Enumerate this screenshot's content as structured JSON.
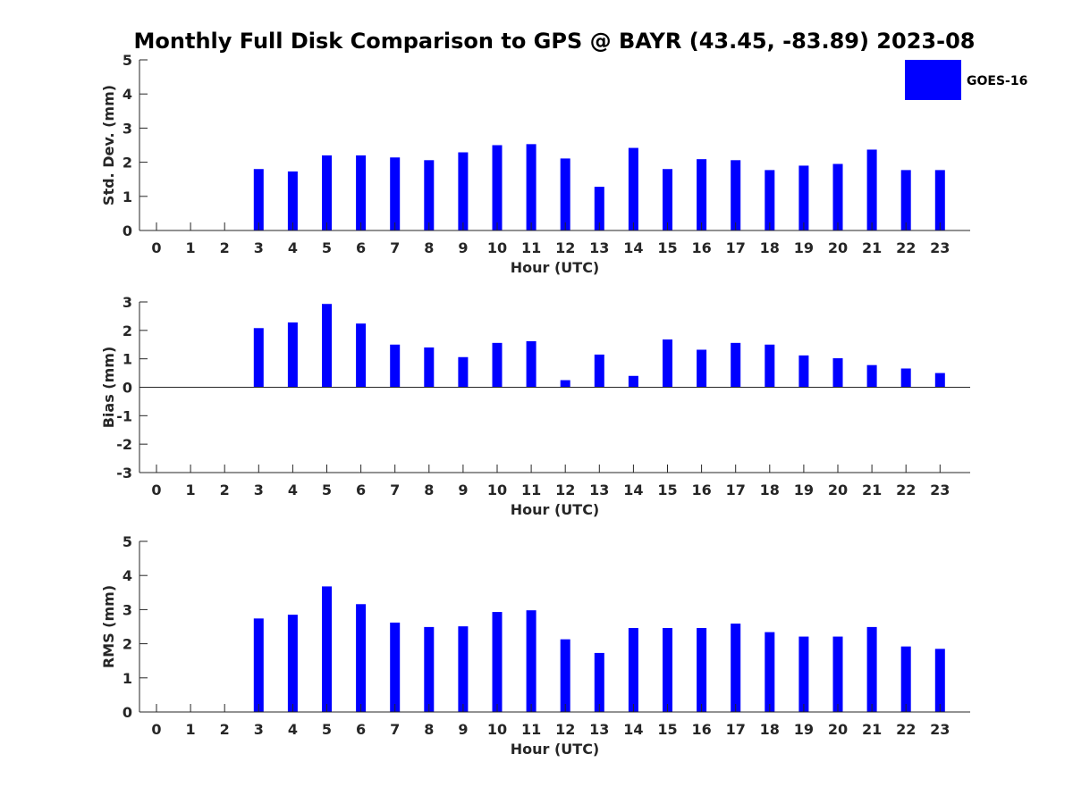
{
  "chart_data": {
    "title": "Monthly Full Disk Comparison to GPS @ BAYR (43.45, -83.89) 2023-08",
    "type": "bar",
    "legend": {
      "entries": [
        "GOES-16"
      ],
      "placement": "top-right",
      "color": "#0000ff"
    },
    "bar_color": "#0000ff",
    "panels": [
      {
        "type": "bar",
        "ylabel": "Std. Dev. (mm)",
        "xlabel": "Hour (UTC)",
        "ylim": [
          0,
          5
        ],
        "yticks": [
          "0",
          "1",
          "2",
          "3",
          "4",
          "5"
        ],
        "ytick_values": [
          0,
          1,
          2,
          3,
          4,
          5
        ],
        "categories": [
          "0",
          "1",
          "2",
          "3",
          "4",
          "5",
          "6",
          "7",
          "8",
          "9",
          "10",
          "11",
          "12",
          "13",
          "14",
          "15",
          "16",
          "17",
          "18",
          "19",
          "20",
          "21",
          "22",
          "23"
        ],
        "series": [
          {
            "name": "GOES-16",
            "values": [
              null,
              null,
              null,
              1.8,
              1.73,
              2.2,
              2.2,
              2.14,
              2.06,
              2.29,
              2.5,
              2.53,
              2.11,
              1.28,
              2.42,
              1.8,
              2.09,
              2.06,
              1.77,
              1.9,
              1.95,
              2.37,
              1.77,
              1.77
            ]
          }
        ]
      },
      {
        "type": "bar",
        "ylabel": "Bias (mm)",
        "xlabel": "Hour (UTC)",
        "ylim": [
          -3,
          3
        ],
        "yticks": [
          "-3",
          "-2",
          "-1",
          "0",
          "1",
          "2",
          "3"
        ],
        "ytick_values": [
          -3,
          -2,
          -1,
          0,
          1,
          2,
          3
        ],
        "categories": [
          "0",
          "1",
          "2",
          "3",
          "4",
          "5",
          "6",
          "7",
          "8",
          "9",
          "10",
          "11",
          "12",
          "13",
          "14",
          "15",
          "16",
          "17",
          "18",
          "19",
          "20",
          "21",
          "22",
          "23"
        ],
        "series": [
          {
            "name": "GOES-16",
            "values": [
              null,
              null,
              null,
              2.08,
              2.28,
              2.93,
              2.24,
              1.5,
              1.4,
              1.06,
              1.56,
              1.62,
              0.25,
              1.15,
              0.4,
              1.68,
              1.32,
              1.56,
              1.5,
              1.12,
              1.02,
              0.78,
              0.66,
              0.5
            ]
          }
        ]
      },
      {
        "type": "bar",
        "ylabel": "RMS (mm)",
        "xlabel": "Hour (UTC)",
        "ylim": [
          0,
          5
        ],
        "yticks": [
          "0",
          "1",
          "2",
          "3",
          "4",
          "5"
        ],
        "ytick_values": [
          0,
          1,
          2,
          3,
          4,
          5
        ],
        "categories": [
          "0",
          "1",
          "2",
          "3",
          "4",
          "5",
          "6",
          "7",
          "8",
          "9",
          "10",
          "11",
          "12",
          "13",
          "14",
          "15",
          "16",
          "17",
          "18",
          "19",
          "20",
          "21",
          "22",
          "23"
        ],
        "series": [
          {
            "name": "GOES-16",
            "values": [
              null,
              null,
              null,
              2.74,
              2.85,
              3.68,
              3.16,
              2.62,
              2.49,
              2.51,
              2.93,
              2.98,
              2.13,
              1.73,
              2.46,
              2.46,
              2.46,
              2.59,
              2.34,
              2.21,
              2.21,
              2.49,
              1.92,
              1.85
            ]
          }
        ]
      }
    ]
  }
}
